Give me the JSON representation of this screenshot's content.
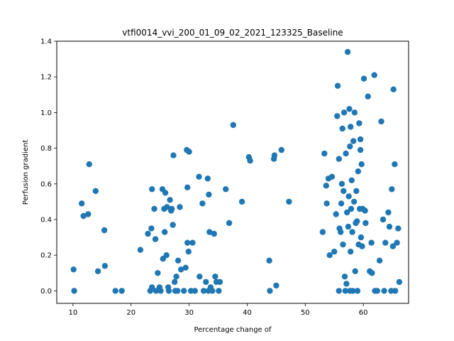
{
  "chart_data": {
    "type": "scatter",
    "title": "vtfi0014_vvi_200_01_09_02_2021_123325_Baseline",
    "xlabel": "Percentage change of",
    "ylabel": "Perfusion gradient",
    "xlim": [
      7.2,
      67.8
    ],
    "ylim": [
      -0.07,
      1.4
    ],
    "xticks": [
      10,
      20,
      30,
      40,
      50,
      60
    ],
    "yticks": [
      0.0,
      0.2,
      0.4,
      0.6,
      0.8,
      1.0,
      1.2,
      1.4
    ],
    "xtick_labels": [
      "10",
      "20",
      "30",
      "40",
      "50",
      "60"
    ],
    "ytick_labels": [
      "0.0",
      "0.2",
      "0.4",
      "0.6",
      "0.8",
      "1.0",
      "1.2",
      "1.4"
    ],
    "grid": false,
    "marker_color": "#1f77b4",
    "series": [
      {
        "points": [
          [
            10.1,
            0.12
          ],
          [
            10.2,
            0.0
          ],
          [
            11.5,
            0.49
          ],
          [
            11.8,
            0.42
          ],
          [
            12.6,
            0.43
          ],
          [
            12.8,
            0.71
          ],
          [
            13.9,
            0.56
          ],
          [
            14.3,
            0.11
          ],
          [
            15.4,
            0.34
          ],
          [
            15.5,
            0.14
          ],
          [
            17.3,
            0.0
          ],
          [
            18.4,
            0.0
          ],
          [
            21.6,
            0.23
          ],
          [
            22.9,
            0.32
          ],
          [
            23.3,
            0.0
          ],
          [
            23.5,
            0.35
          ],
          [
            23.6,
            0.02
          ],
          [
            23.6,
            0.57
          ],
          [
            24.0,
            0.46
          ],
          [
            24.2,
            0.29
          ],
          [
            24.3,
            0.0
          ],
          [
            24.6,
            0.1
          ],
          [
            24.9,
            0.02
          ],
          [
            25.1,
            0.0
          ],
          [
            25.4,
            0.57
          ],
          [
            25.5,
            0.18
          ],
          [
            25.7,
            0.46
          ],
          [
            25.8,
            0.33
          ],
          [
            25.9,
            0.55
          ],
          [
            26.1,
            0.2
          ],
          [
            26.2,
            0.47
          ],
          [
            26.4,
            0.02
          ],
          [
            26.5,
            0.0
          ],
          [
            26.7,
            0.51
          ],
          [
            26.9,
            0.45
          ],
          [
            27.0,
            0.46
          ],
          [
            27.2,
            0.37
          ],
          [
            27.3,
            0.76
          ],
          [
            27.5,
            0.05
          ],
          [
            27.6,
            0.0
          ],
          [
            27.8,
            0.08
          ],
          [
            28.0,
            0.0
          ],
          [
            28.1,
            0.17
          ],
          [
            28.4,
            0.47
          ],
          [
            28.6,
            0.12
          ],
          [
            29.1,
            0.0
          ],
          [
            29.4,
            0.13
          ],
          [
            29.6,
            0.79
          ],
          [
            29.7,
            0.27
          ],
          [
            29.7,
            0.58
          ],
          [
            29.9,
            0.22
          ],
          [
            30.0,
            0.78
          ],
          [
            30.3,
            0.0
          ],
          [
            30.6,
            0.27
          ],
          [
            31.0,
            0.0
          ],
          [
            31.7,
            0.64
          ],
          [
            31.8,
            0.08
          ],
          [
            32.3,
            0.49
          ],
          [
            32.5,
            0.0
          ],
          [
            32.9,
            0.05
          ],
          [
            33.2,
            0.63
          ],
          [
            33.3,
            0.0
          ],
          [
            33.4,
            0.54
          ],
          [
            33.5,
            0.33
          ],
          [
            33.7,
            0.02
          ],
          [
            34.0,
            0.0
          ],
          [
            34.3,
            0.32
          ],
          [
            34.5,
            0.08
          ],
          [
            34.7,
            0.05
          ],
          [
            35.1,
            0.0
          ],
          [
            35.3,
            0.05
          ],
          [
            36.3,
            0.57
          ],
          [
            36.9,
            0.38
          ],
          [
            37.6,
            0.93
          ],
          [
            39.1,
            0.5
          ],
          [
            40.3,
            0.75
          ],
          [
            40.5,
            0.73
          ],
          [
            43.8,
            0.17
          ],
          [
            43.9,
            0.0
          ],
          [
            44.6,
            0.74
          ],
          [
            44.7,
            0.76
          ],
          [
            45.0,
            0.03
          ],
          [
            45.9,
            0.79
          ],
          [
            47.2,
            0.5
          ],
          [
            53.0,
            0.33
          ],
          [
            53.3,
            0.77
          ],
          [
            53.6,
            0.59
          ],
          [
            53.7,
            0.49
          ],
          [
            54.0,
            0.63
          ],
          [
            54.2,
            0.2
          ],
          [
            54.6,
            0.64
          ],
          [
            55.0,
            0.22
          ],
          [
            55.3,
            0.43
          ],
          [
            55.5,
            0.98
          ],
          [
            55.6,
            1.15
          ],
          [
            55.8,
            0.0
          ],
          [
            55.8,
            0.74
          ],
          [
            55.9,
            0.35
          ],
          [
            56.1,
            0.33
          ],
          [
            56.2,
            0.49
          ],
          [
            56.3,
            0.6
          ],
          [
            56.4,
            0.91
          ],
          [
            56.5,
            0.26
          ],
          [
            56.6,
            0.56
          ],
          [
            56.7,
            1.0
          ],
          [
            56.8,
            0.08
          ],
          [
            56.9,
            0.0
          ],
          [
            57.0,
            0.77
          ],
          [
            57.1,
            0.04
          ],
          [
            57.2,
            0.44
          ],
          [
            57.3,
            1.34
          ],
          [
            57.4,
            0.36
          ],
          [
            57.5,
            0.53
          ],
          [
            57.6,
            1.02
          ],
          [
            57.7,
            0.81
          ],
          [
            57.7,
            0.0
          ],
          [
            57.8,
            0.92
          ],
          [
            57.8,
            0.22
          ],
          [
            57.9,
            0.46
          ],
          [
            58.0,
            0.62
          ],
          [
            58.1,
            0.33
          ],
          [
            58.2,
            0.0
          ],
          [
            58.3,
            0.84
          ],
          [
            58.4,
            0.5
          ],
          [
            58.5,
            1.0
          ],
          [
            58.6,
            0.11
          ],
          [
            58.7,
            0.38
          ],
          [
            58.8,
            0.56
          ],
          [
            58.9,
            0.39
          ],
          [
            59.0,
            0.0
          ],
          [
            59.1,
            0.67
          ],
          [
            59.2,
            0.26
          ],
          [
            59.3,
            0.94
          ],
          [
            59.4,
            0.46
          ],
          [
            59.5,
            0.79
          ],
          [
            59.5,
            0.85
          ],
          [
            59.6,
            0.3
          ],
          [
            59.7,
            0.71
          ],
          [
            59.8,
            0.25
          ],
          [
            59.9,
            0.46
          ],
          [
            60.1,
            1.19
          ],
          [
            60.3,
            0.45
          ],
          [
            60.4,
            0.38
          ],
          [
            60.8,
            1.09
          ],
          [
            61.1,
            0.11
          ],
          [
            61.4,
            0.27
          ],
          [
            61.5,
            0.1
          ],
          [
            61.9,
            1.21
          ],
          [
            62.0,
            0.0
          ],
          [
            62.4,
            0.0
          ],
          [
            62.8,
            0.17
          ],
          [
            63.1,
            0.95
          ],
          [
            63.4,
            0.4
          ],
          [
            63.6,
            0.0
          ],
          [
            63.8,
            0.27
          ],
          [
            64.3,
            0.44
          ],
          [
            64.5,
            0.36
          ],
          [
            64.8,
            0.0
          ],
          [
            64.9,
            0.57
          ],
          [
            65.1,
            0.25
          ],
          [
            65.2,
            1.13
          ],
          [
            65.4,
            0.71
          ],
          [
            65.5,
            0.0
          ],
          [
            65.8,
            0.27
          ],
          [
            66.0,
            0.35
          ],
          [
            66.2,
            0.05
          ]
        ]
      }
    ]
  }
}
